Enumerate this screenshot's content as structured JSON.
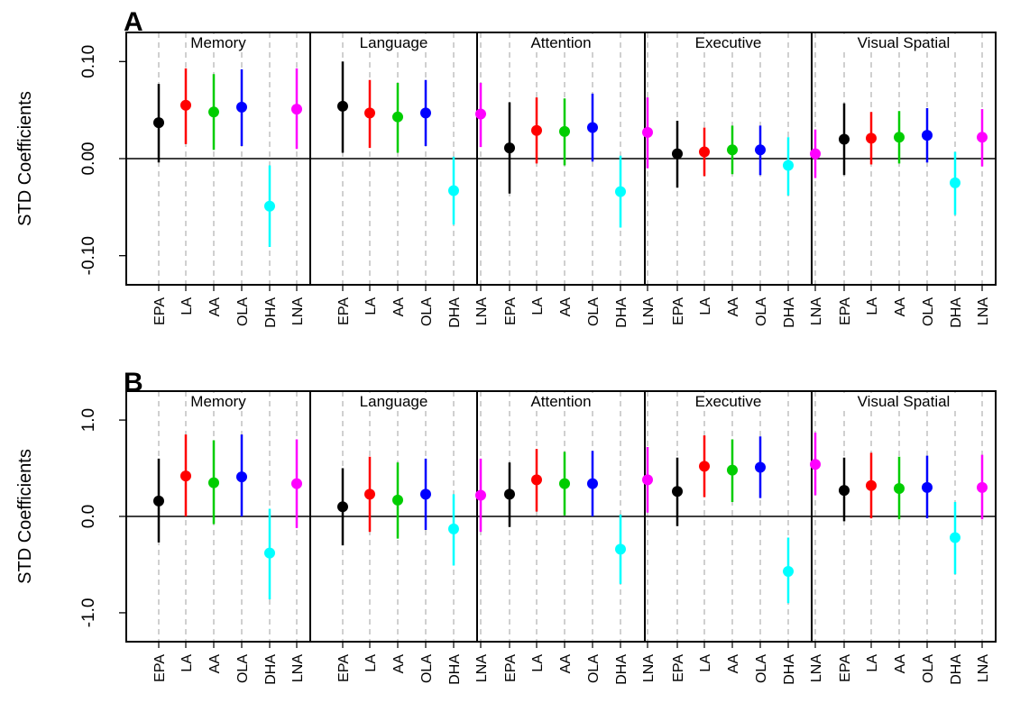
{
  "colors": {
    "EPA": "#000000",
    "LA": "#ff0000",
    "AA": "#00cd00",
    "OLA": "#0000ff",
    "DHA": "#00ffff",
    "LNA": "#ff00ff"
  },
  "chart_data": [
    {
      "type": "scatter",
      "subtype": "point-with-error-bars",
      "panel_letter": "A",
      "ylabel": "STD Coefficients",
      "ylim": [
        -0.13,
        0.13
      ],
      "yticks": [
        -0.1,
        0,
        0.1
      ],
      "ytick_labels": [
        "-0.10",
        "0.00",
        "0.10"
      ],
      "categories": [
        "EPA",
        "LA",
        "AA",
        "OLA",
        "DHA",
        "LNA"
      ],
      "groups": [
        {
          "name": "Memory",
          "estimate": [
            0.037,
            0.055,
            0.048,
            0.053,
            -0.049,
            0.051
          ],
          "lower": [
            -0.004,
            0.015,
            0.009,
            0.013,
            -0.091,
            0.01
          ],
          "upper": [
            0.077,
            0.093,
            0.087,
            0.092,
            -0.007,
            0.093
          ]
        },
        {
          "name": "Language",
          "estimate": [
            0.054,
            0.047,
            0.043,
            0.047,
            -0.033,
            0.046
          ],
          "lower": [
            0.006,
            0.011,
            0.006,
            0.013,
            -0.068,
            0.012
          ],
          "upper": [
            0.1,
            0.081,
            0.078,
            0.081,
            0.002,
            0.078
          ]
        },
        {
          "name": "Attention",
          "estimate": [
            0.011,
            0.029,
            0.028,
            0.032,
            -0.034,
            0.027
          ],
          "lower": [
            -0.036,
            -0.005,
            -0.007,
            -0.003,
            -0.071,
            -0.01
          ],
          "upper": [
            0.058,
            0.063,
            0.062,
            0.067,
            0.003,
            0.063
          ]
        },
        {
          "name": "Executive",
          "estimate": [
            0.005,
            0.007,
            0.009,
            0.009,
            -0.007,
            0.005
          ],
          "lower": [
            -0.03,
            -0.018,
            -0.016,
            -0.017,
            -0.038,
            -0.02
          ],
          "upper": [
            0.039,
            0.032,
            0.034,
            0.034,
            0.022,
            0.03
          ]
        },
        {
          "name": "Visual Spatial",
          "estimate": [
            0.02,
            0.021,
            0.022,
            0.024,
            -0.025,
            0.022
          ],
          "lower": [
            -0.017,
            -0.006,
            -0.005,
            -0.004,
            -0.058,
            -0.008
          ],
          "upper": [
            0.057,
            0.048,
            0.049,
            0.052,
            0.007,
            0.051
          ]
        }
      ]
    },
    {
      "type": "scatter",
      "subtype": "point-with-error-bars",
      "panel_letter": "B",
      "ylabel": "STD Coefficients",
      "ylim": [
        -1.3,
        1.3
      ],
      "yticks": [
        -1,
        0,
        1
      ],
      "ytick_labels": [
        "-1.0",
        "0.0",
        "1.0"
      ],
      "categories": [
        "EPA",
        "LA",
        "AA",
        "OLA",
        "DHA",
        "LNA"
      ],
      "groups": [
        {
          "name": "Memory",
          "estimate": [
            0.16,
            0.42,
            0.35,
            0.41,
            -0.38,
            0.34
          ],
          "lower": [
            -0.27,
            0.0,
            -0.08,
            0.0,
            -0.86,
            -0.12
          ],
          "upper": [
            0.6,
            0.85,
            0.79,
            0.85,
            0.08,
            0.8
          ]
        },
        {
          "name": "Language",
          "estimate": [
            0.1,
            0.23,
            0.17,
            0.23,
            -0.13,
            0.22
          ],
          "lower": [
            -0.3,
            -0.16,
            -0.23,
            -0.14,
            -0.51,
            -0.16
          ],
          "upper": [
            0.5,
            0.62,
            0.56,
            0.6,
            0.23,
            0.6
          ]
        },
        {
          "name": "Attention",
          "estimate": [
            0.23,
            0.38,
            0.34,
            0.34,
            -0.34,
            0.38
          ],
          "lower": [
            -0.11,
            0.05,
            0.01,
            0.0,
            -0.7,
            0.04
          ],
          "upper": [
            0.56,
            0.7,
            0.67,
            0.68,
            0.02,
            0.72
          ]
        },
        {
          "name": "Executive",
          "estimate": [
            0.26,
            0.52,
            0.48,
            0.51,
            -0.57,
            0.54
          ],
          "lower": [
            -0.1,
            0.2,
            0.15,
            0.19,
            -0.9,
            0.22
          ],
          "upper": [
            0.61,
            0.84,
            0.8,
            0.83,
            -0.22,
            0.87
          ]
        },
        {
          "name": "Visual Spatial",
          "estimate": [
            0.27,
            0.32,
            0.29,
            0.3,
            -0.22,
            0.3
          ],
          "lower": [
            -0.05,
            -0.02,
            -0.03,
            -0.02,
            -0.6,
            -0.03
          ],
          "upper": [
            0.61,
            0.66,
            0.62,
            0.63,
            0.15,
            0.64
          ]
        }
      ]
    }
  ]
}
